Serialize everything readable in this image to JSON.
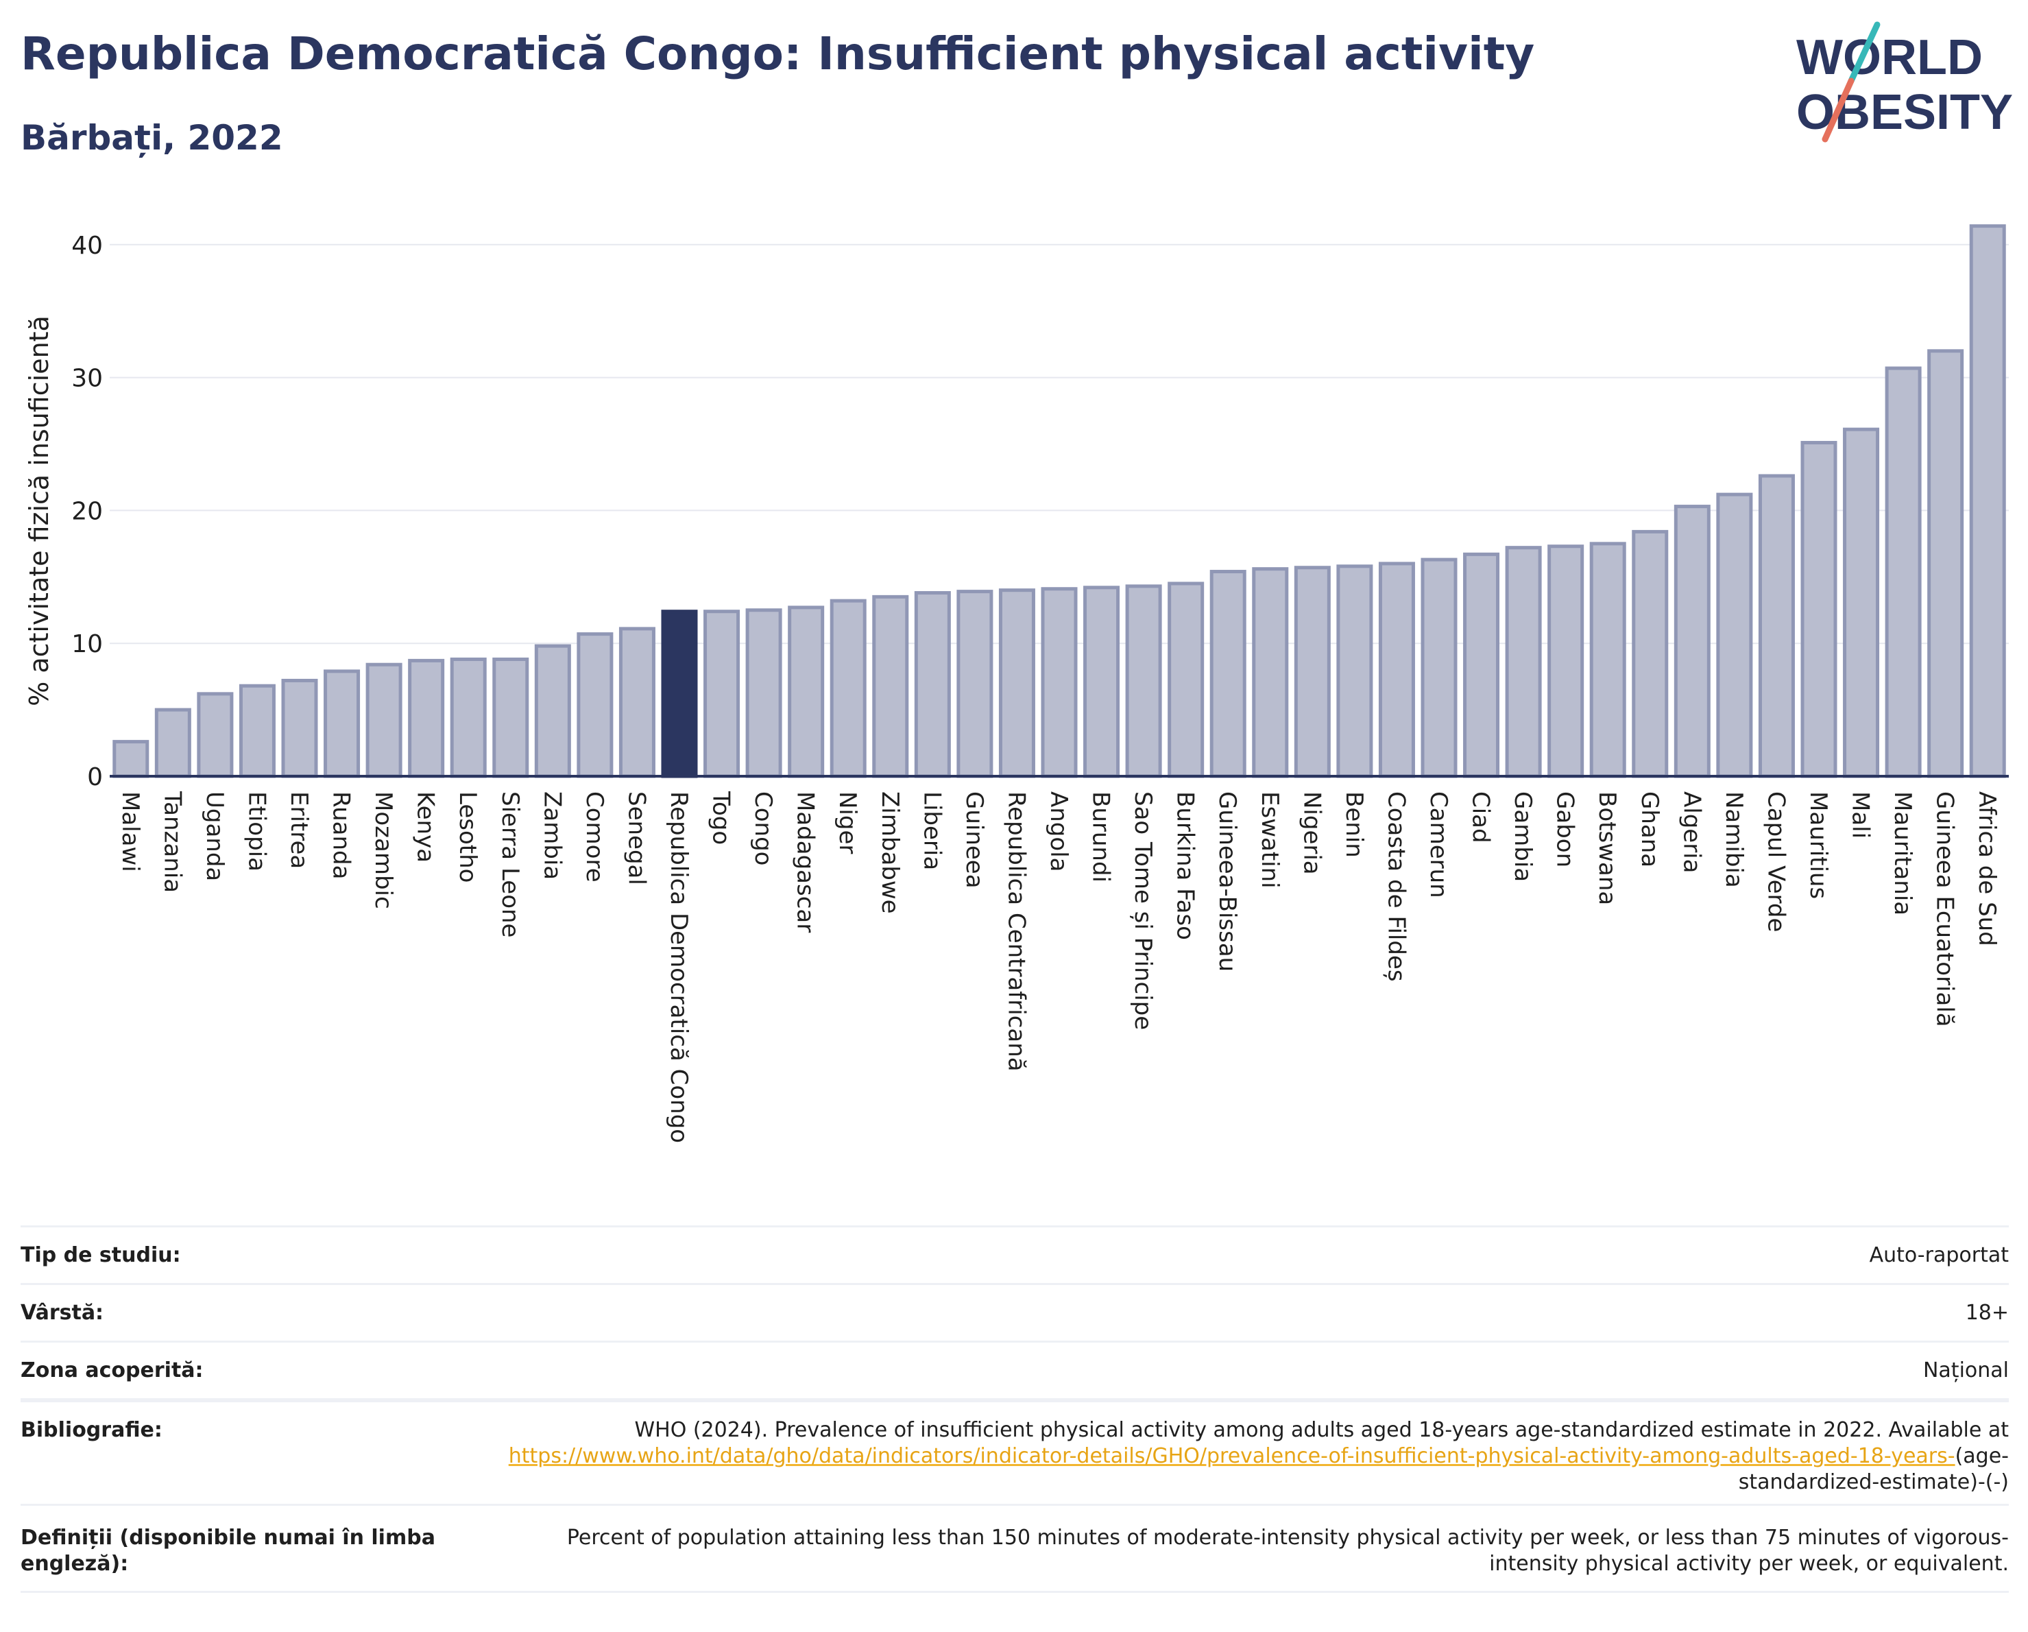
{
  "header": {
    "title": "Republica Democratică Congo: Insufficient physical activity",
    "subtitle": "Bărbați, 2022",
    "logo_line1": "WORLD",
    "logo_line2": "OBESITY"
  },
  "colors": {
    "title": "#2b3660",
    "bar": "#b9bdcf",
    "bar_border": "#9097b5",
    "highlight": "#2b3660",
    "link": "#e7a415",
    "logo_teal": "#37b8b8",
    "logo_red": "#e5705c"
  },
  "chart_data": {
    "type": "bar",
    "ylabel": "% activitate fizică insuficientă",
    "ylim": [
      0,
      42
    ],
    "yticks": [
      0,
      10,
      20,
      30,
      40
    ],
    "grid": true,
    "highlight": "Republica Democratică Congo",
    "categories": [
      "Malawi",
      "Tanzania",
      "Uganda",
      "Etiopia",
      "Eritrea",
      "Ruanda",
      "Mozambic",
      "Kenya",
      "Lesotho",
      "Sierra Leone",
      "Zambia",
      "Comore",
      "Senegal",
      "Republica Democratică Congo",
      "Togo",
      "Congo",
      "Madagascar",
      "Niger",
      "Zimbabwe",
      "Liberia",
      "Guineea",
      "Republica Centrafricană",
      "Angola",
      "Burundi",
      "Sao Tome și Principe",
      "Burkina Faso",
      "Guineea-Bissau",
      "Eswatini",
      "Nigeria",
      "Benin",
      "Coasta de Fildeș",
      "Camerun",
      "Ciad",
      "Gambia",
      "Gabon",
      "Botswana",
      "Ghana",
      "Algeria",
      "Namibia",
      "Capul Verde",
      "Mauritius",
      "Mali",
      "Mauritania",
      "Guineea Ecuatorială",
      "Africa de Sud"
    ],
    "values": [
      2.6,
      5.0,
      6.2,
      6.8,
      7.2,
      7.9,
      8.4,
      8.7,
      8.8,
      8.8,
      9.8,
      10.7,
      11.1,
      12.4,
      12.4,
      12.5,
      12.7,
      13.2,
      13.5,
      13.8,
      13.9,
      14.0,
      14.1,
      14.2,
      14.3,
      14.5,
      15.4,
      15.6,
      15.7,
      15.8,
      16.0,
      16.3,
      16.7,
      17.2,
      17.3,
      17.5,
      18.4,
      20.3,
      21.2,
      22.6,
      25.1,
      26.1,
      30.7,
      32.0,
      41.4
    ]
  },
  "info": {
    "rows": [
      {
        "label": "Tip de studiu:",
        "value": "Auto-raportat"
      },
      {
        "label": "Vârstă:",
        "value": "18+"
      },
      {
        "label": "Zona acoperită:",
        "value": "Național"
      }
    ],
    "bibliography_label": "Bibliografie:",
    "bibliography_text": "WHO (2024). Prevalence of insufficient physical activity among adults aged 18-years age-standardized estimate in 2022. Available at",
    "bibliography_link": "https://www.who.int/data/gho/data/indicators/indicator-details/GHO/prevalence-of-insufficient-physical-activity-among-adults-aged-18-years-",
    "bibliography_suffix": "(age-standardized-estimate)-(-)",
    "definitions_label": "Definiții (disponibile numai în limba engleză):",
    "definitions_text": "Percent of population attaining less than 150 minutes of moderate-intensity physical activity per week, or less than 75 minutes of vigorous-intensity physical activity per week, or equivalent."
  }
}
